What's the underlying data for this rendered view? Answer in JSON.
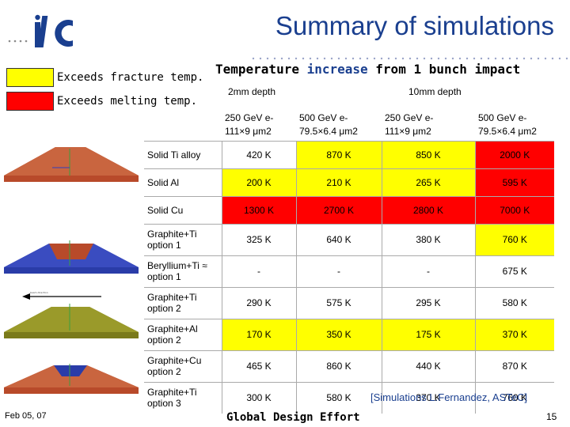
{
  "header": {
    "title": "Summary of simulations",
    "subtitle_prefix": "Temperature ",
    "subtitle_highlight": "increase",
    "subtitle_suffix": " from 1 bunch impact"
  },
  "legend": [
    {
      "label": "Exceeds fracture temp.",
      "color": "#ffff00"
    },
    {
      "label": "Exceeds melting temp.",
      "color": "#ff0000"
    }
  ],
  "table": {
    "depth_headers": [
      "2mm depth",
      "10mm depth"
    ],
    "beam_headers": [
      {
        "energy": "250 GeV e-",
        "size": "111×9 μm2"
      },
      {
        "energy": "500 GeV e-",
        "size": "79.5×6.4 μm2"
      },
      {
        "energy": "250 GeV e-",
        "size": "111×9 μm2"
      },
      {
        "energy": "500 GeV e-",
        "size": "79.5×6.4 μm2"
      }
    ],
    "rows": [
      {
        "label": "Solid Ti alloy",
        "values": [
          "420 K",
          "870 K",
          "850 K",
          "2000 K"
        ],
        "status": [
          "none",
          "yellow",
          "yellow",
          "red"
        ]
      },
      {
        "label": "Solid Al",
        "values": [
          "200 K",
          "210 K",
          "265 K",
          "595 K"
        ],
        "status": [
          "yellow",
          "yellow",
          "yellow",
          "red"
        ]
      },
      {
        "label": "Solid Cu",
        "values": [
          "1300 K",
          "2700 K",
          "2800 K",
          "7000 K"
        ],
        "status": [
          "red",
          "red",
          "red",
          "red"
        ]
      },
      {
        "label": "Graphite+Ti option 1",
        "values": [
          "325 K",
          "640 K",
          "380 K",
          "760 K"
        ],
        "status": [
          "none",
          "none",
          "none",
          "yellow"
        ]
      },
      {
        "label": "Beryllium+Ti ≈ option 1",
        "values": [
          "-",
          "-",
          "-",
          "675 K"
        ],
        "status": [
          "none",
          "none",
          "none",
          "none"
        ]
      },
      {
        "label": "Graphite+Ti option 2",
        "values": [
          "290 K",
          "575 K",
          "295 K",
          "580 K"
        ],
        "status": [
          "none",
          "none",
          "none",
          "none"
        ]
      },
      {
        "label": "Graphite+Al option 2",
        "values": [
          "170 K",
          "350 K",
          "175 K",
          "370 K"
        ],
        "status": [
          "yellow",
          "yellow",
          "yellow",
          "yellow"
        ]
      },
      {
        "label": "Graphite+Cu option 2",
        "values": [
          "465 K",
          "860 K",
          "440 K",
          "870 K"
        ],
        "status": [
          "none",
          "none",
          "none",
          "none"
        ]
      },
      {
        "label": "Graphite+Ti option 3",
        "values": [
          "300 K",
          "580 K",
          "370 K",
          "760 K"
        ],
        "status": [
          "none",
          "none",
          "none",
          "none"
        ]
      }
    ]
  },
  "credit": "[Simulations L.Fernandez, ASTeC]",
  "footer": {
    "date": "Feb 05, 07",
    "center": "Global Design Effort",
    "page": "15"
  },
  "colors": {
    "yellow": "#ffff00",
    "red": "#ff0000",
    "title_blue": "#1a3f8f"
  },
  "icons": [
    "ilc-logo",
    "beam-direction-arrow"
  ]
}
